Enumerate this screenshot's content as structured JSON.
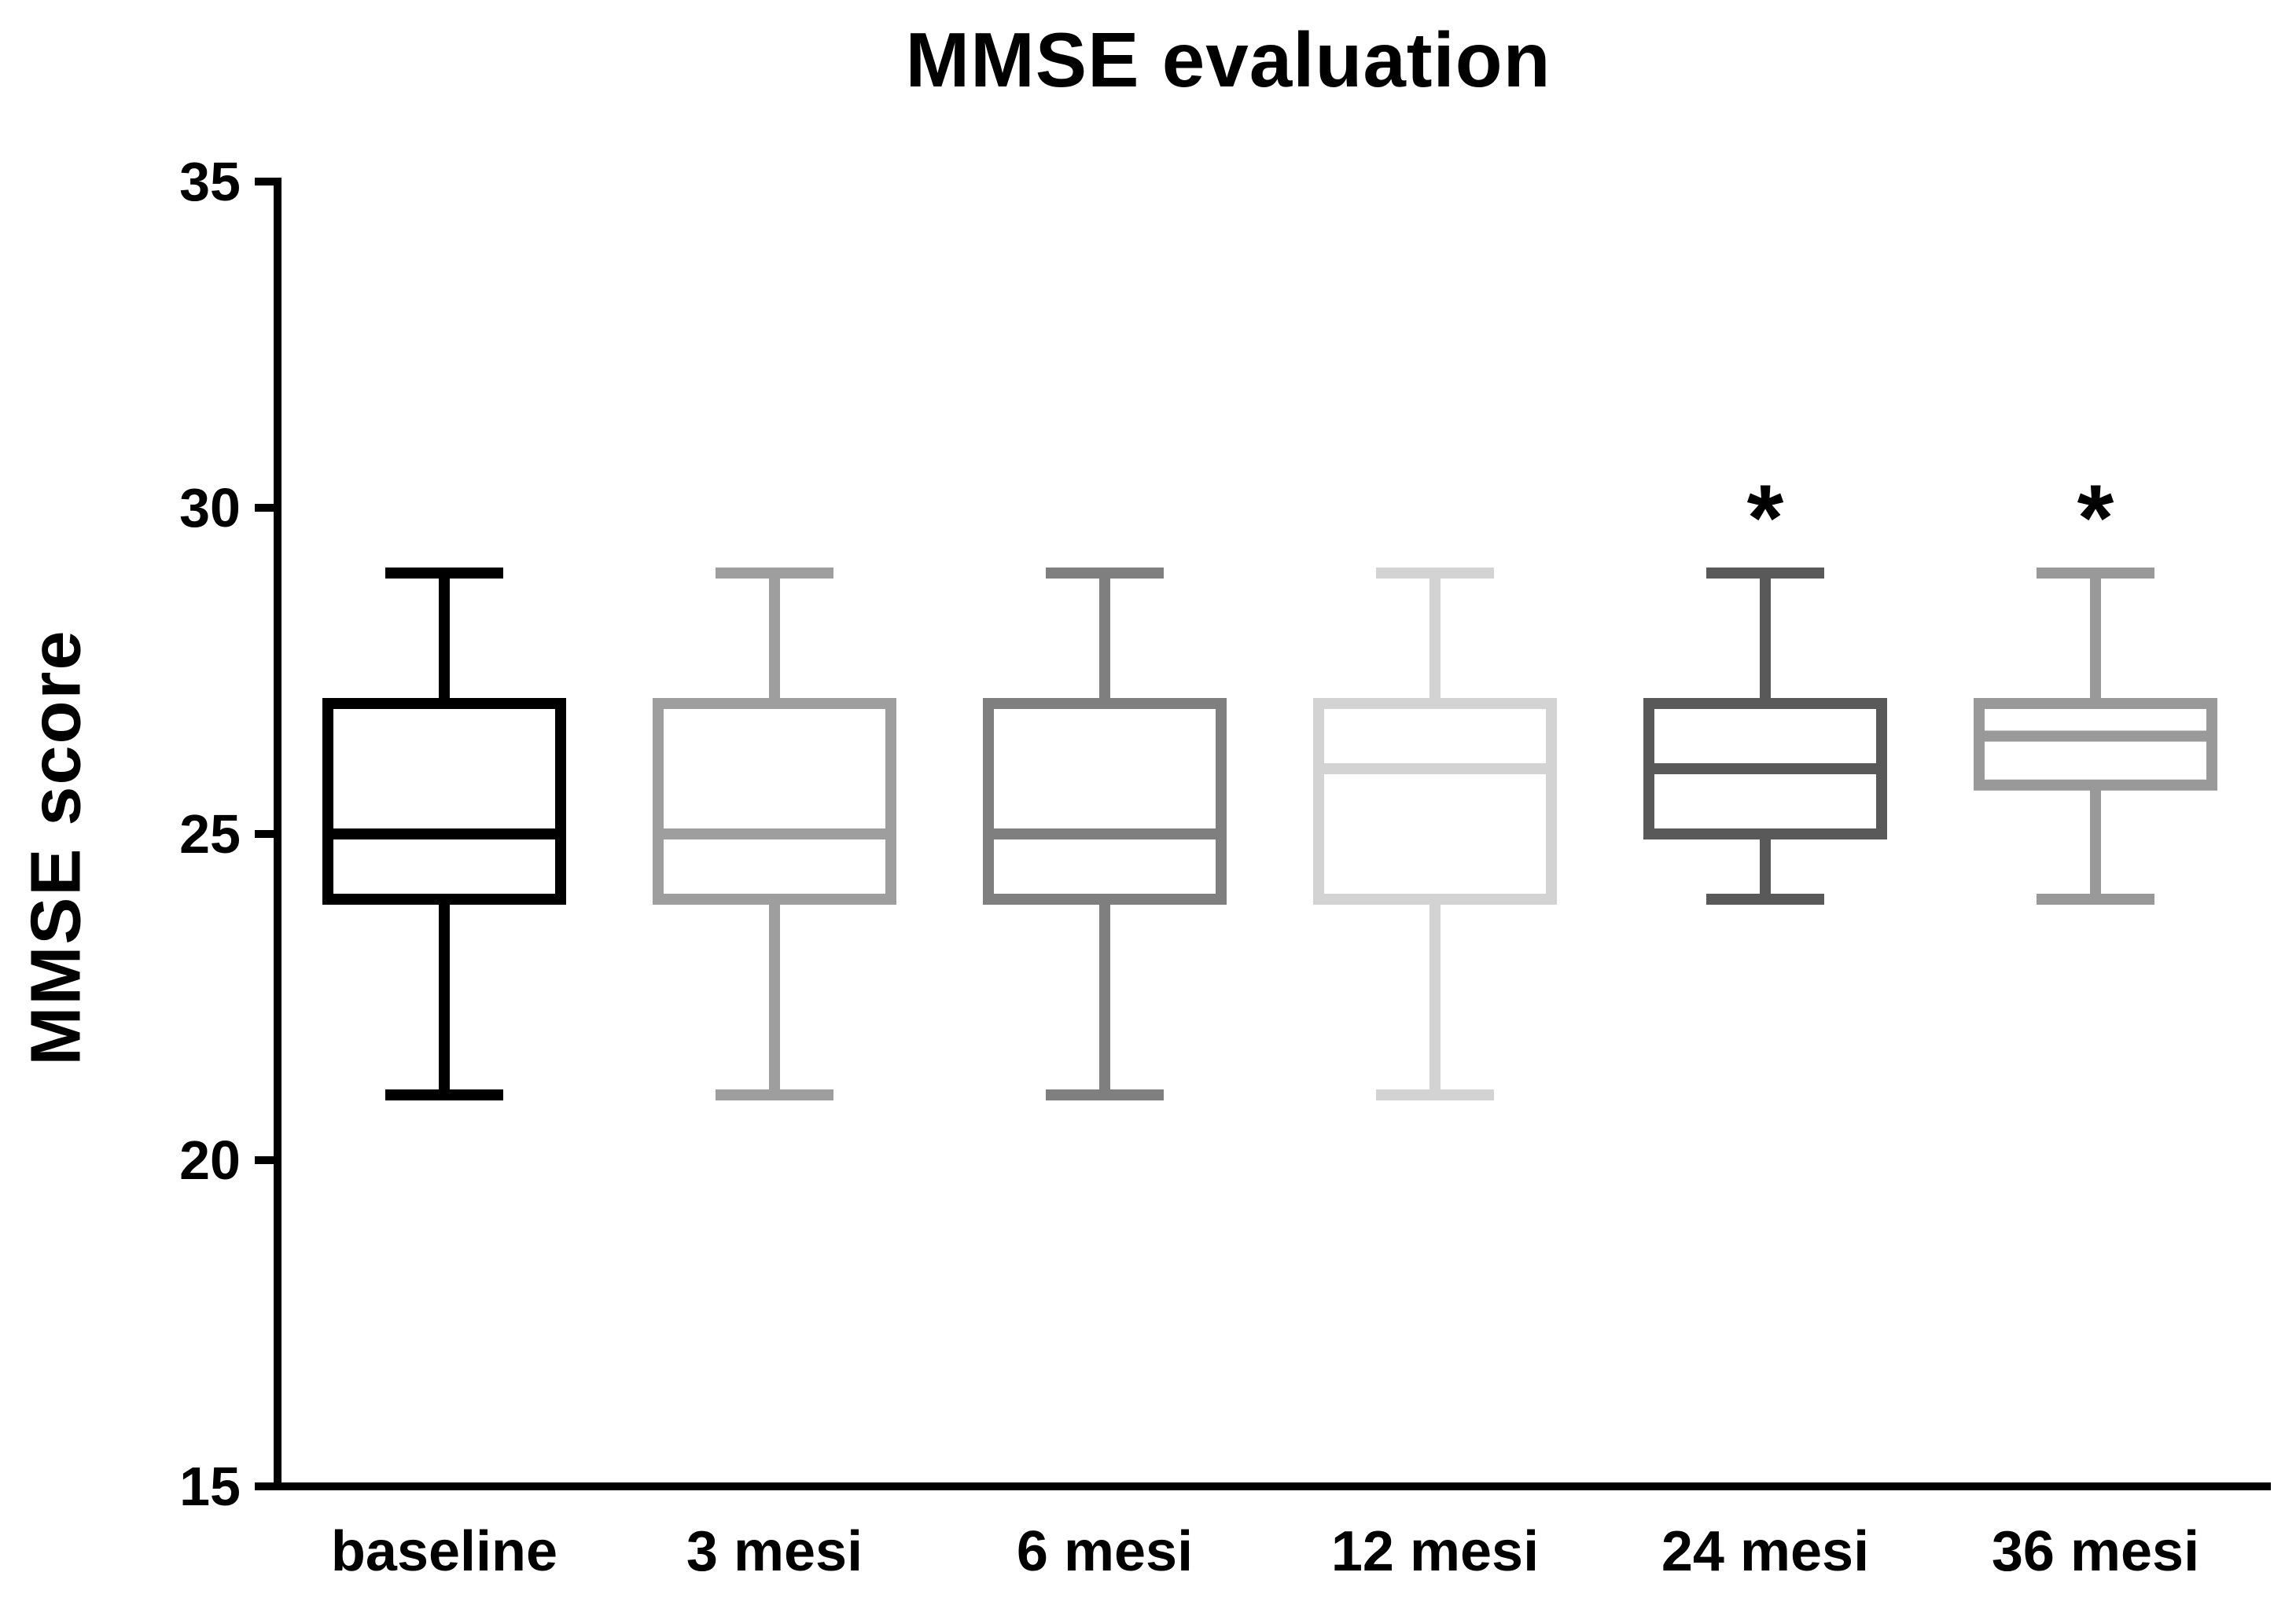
{
  "chart_data": {
    "type": "box",
    "title": "MMSE evaluation",
    "ylabel": "MMSE score",
    "xlabel": "",
    "ylim": [
      15,
      35
    ],
    "yticks": [
      35,
      30,
      25,
      20,
      15
    ],
    "grid": false,
    "legend": false,
    "categories": [
      "baseline",
      "3 mesi",
      "6 mesi",
      "12 mesi",
      "24 mesi",
      "36 mesi"
    ],
    "series": [
      {
        "name": "baseline",
        "min": 21,
        "q1": 24,
        "median": 25,
        "q3": 27,
        "max": 29,
        "color": "#000000",
        "annotation": ""
      },
      {
        "name": "3 mesi",
        "min": 21,
        "q1": 24,
        "median": 25,
        "q3": 27,
        "max": 29,
        "color": "#9e9e9e",
        "annotation": ""
      },
      {
        "name": "6 mesi",
        "min": 21,
        "q1": 24,
        "median": 25,
        "q3": 27,
        "max": 29,
        "color": "#7f7f7f",
        "annotation": ""
      },
      {
        "name": "12 mesi",
        "min": 21,
        "q1": 24,
        "median": 26,
        "q3": 27,
        "max": 29,
        "color": "#d3d3d3",
        "annotation": ""
      },
      {
        "name": "24 mesi",
        "min": 24,
        "q1": 25,
        "median": 26,
        "q3": 27,
        "max": 29,
        "color": "#595959",
        "annotation": "*"
      },
      {
        "name": "36 mesi",
        "min": 24,
        "q1": 25.75,
        "median": 26.5,
        "q3": 27,
        "max": 29,
        "color": "#999999",
        "annotation": "*"
      }
    ],
    "annotation_color": "#111111",
    "axis_color": "#000000",
    "box_fill": "#ffffff"
  }
}
